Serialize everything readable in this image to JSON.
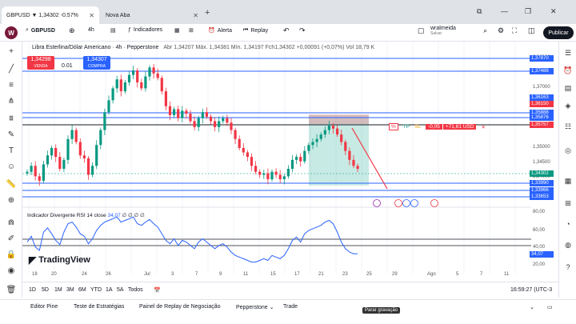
{
  "browser": {
    "tabs": [
      {
        "label": "GBPUSD ▼ 1,34302 -0.57%"
      },
      {
        "label": "Nova Aba"
      }
    ],
    "new_tab": "+",
    "window_controls": [
      "⧉",
      "—",
      "❐",
      "✕"
    ]
  },
  "toolbar": {
    "logo_badge": "W",
    "symbol": "GBPUSD",
    "add_symbol": "⊕",
    "interval": "4h",
    "indicators_label": "Indicadores",
    "alert_label": "Alerta",
    "replay_label": "Replay",
    "username": "wralmeida",
    "user_status": "Salvar",
    "publish_label": "Publicar"
  },
  "legend": {
    "title": "Libra Esterlina/Dólar Americano · 4h · Pepperstone",
    "ohlc": "Abr 1,34207  Máx. 1,34381  Mín. 1,34197  Fch1,34302  +0,00091 (+0,07%)  Vol 18,79 K"
  },
  "order_panel": {
    "sell_price": "1,34298",
    "sell_label": "VENDA",
    "spread": "0.01",
    "buy_price": "1,34307",
    "buy_label": "COMPRA"
  },
  "price_scale": {
    "ticks": [
      "1,38000",
      "1,37000",
      "1,36000",
      "1,35000",
      "1,34500",
      "1,34000",
      "1,33500"
    ],
    "labels": [
      {
        "text": "1,37870",
        "color": "#2962ff"
      },
      {
        "text": "1,37488",
        "color": "#2962ff"
      },
      {
        "text": "1,36163",
        "color": "#2962ff"
      },
      {
        "text": "1,36150",
        "color": "#f23645"
      },
      {
        "text": "1,35888",
        "color": "#2962ff"
      },
      {
        "text": "1,35876",
        "color": "#2962ff"
      },
      {
        "text": "1,35757",
        "color": "#f23645"
      },
      {
        "text": "1,34302",
        "color": "#089981"
      },
      {
        "text": "1,33990",
        "color": "#2962ff"
      },
      {
        "text": "1,33966",
        "color": "#2962ff"
      },
      {
        "text": "1,33653",
        "color": "#2962ff"
      }
    ]
  },
  "trade_line": {
    "percent": "%",
    "tp": "TP",
    "sl": "SL",
    "pnl_pips": "-0,05",
    "pnl_usd": "+71,61 USD",
    "close": "✕"
  },
  "rsi": {
    "label": "Indicador Divergente RSI 14 close",
    "value": "34,07",
    "extra": "∅ ∅ ∅ ∅",
    "ticks": [
      "80,00",
      "60,00",
      "40,00",
      "20,00"
    ],
    "current_label": "34,07"
  },
  "time_scale": [
    "18",
    "20",
    "24",
    "26",
    "Jul",
    "3",
    "7",
    "9",
    "11",
    "15",
    "17",
    "21",
    "23",
    "25",
    "29",
    "Ago",
    "5",
    "7",
    "11"
  ],
  "bottom": {
    "ranges": [
      "1D",
      "5D",
      "1M",
      "3M",
      "6M",
      "YTD",
      "1A",
      "5A",
      "Todos"
    ],
    "clock": "16:59:27 (UTC-3"
  },
  "panels": {
    "tabs": [
      "Editor Pine",
      "Teste de Estratégias",
      "Painel de Replay de Negociação",
      "Pepperstone ⌄",
      "Trade"
    ]
  },
  "tooltip": "Parar gravação",
  "brand": "TradingView",
  "chart_data": {
    "type": "candlestick",
    "title": "Libra Esterlina/Dólar Americano · 4h · Pepperstone",
    "ylim": [
      1.332,
      1.383
    ],
    "closes": [
      1.342,
      1.344,
      1.3405,
      1.339,
      1.3445,
      1.3475,
      1.35,
      1.347,
      1.343,
      1.346,
      1.353,
      1.356,
      1.352,
      1.3475,
      1.3465,
      1.341,
      1.344,
      1.351,
      1.356,
      1.362,
      1.366,
      1.37,
      1.373,
      1.369,
      1.372,
      1.3745,
      1.376,
      1.372,
      1.37,
      1.374,
      1.377,
      1.375,
      1.3735,
      1.369,
      1.364,
      1.361,
      1.363,
      1.36,
      1.3625,
      1.3615,
      1.359,
      1.357,
      1.36,
      1.362,
      1.3605,
      1.359,
      1.357,
      1.359,
      1.36,
      1.3585,
      1.356,
      1.353,
      1.35,
      1.3485,
      1.347,
      1.344,
      1.342,
      1.341,
      1.3415,
      1.3395,
      1.342,
      1.341,
      1.3395,
      1.3405,
      1.343,
      1.346,
      1.347,
      1.3455,
      1.349,
      1.351,
      1.352,
      1.353,
      1.3545,
      1.356,
      1.3575,
      1.3565,
      1.3545,
      1.352,
      1.349,
      1.346,
      1.344,
      1.343
    ],
    "rsi": [
      48,
      55,
      42,
      38,
      60,
      65,
      58,
      50,
      45,
      60,
      70,
      72,
      66,
      58,
      55,
      46,
      52,
      62,
      68,
      72,
      74,
      76,
      78,
      72,
      74,
      76,
      78,
      70,
      68,
      72,
      75,
      70,
      66,
      58,
      50,
      46,
      52,
      44,
      50,
      48,
      44,
      40,
      48,
      52,
      48,
      44,
      40,
      44,
      46,
      42,
      36,
      32,
      30,
      28,
      26,
      24,
      24,
      26,
      28,
      26,
      32,
      30,
      28,
      32,
      40,
      50,
      54,
      48,
      58,
      62,
      64,
      66,
      68,
      72,
      74,
      70,
      60,
      48,
      40,
      36,
      34,
      34
    ],
    "rsi_ylim": [
      15,
      85
    ]
  }
}
